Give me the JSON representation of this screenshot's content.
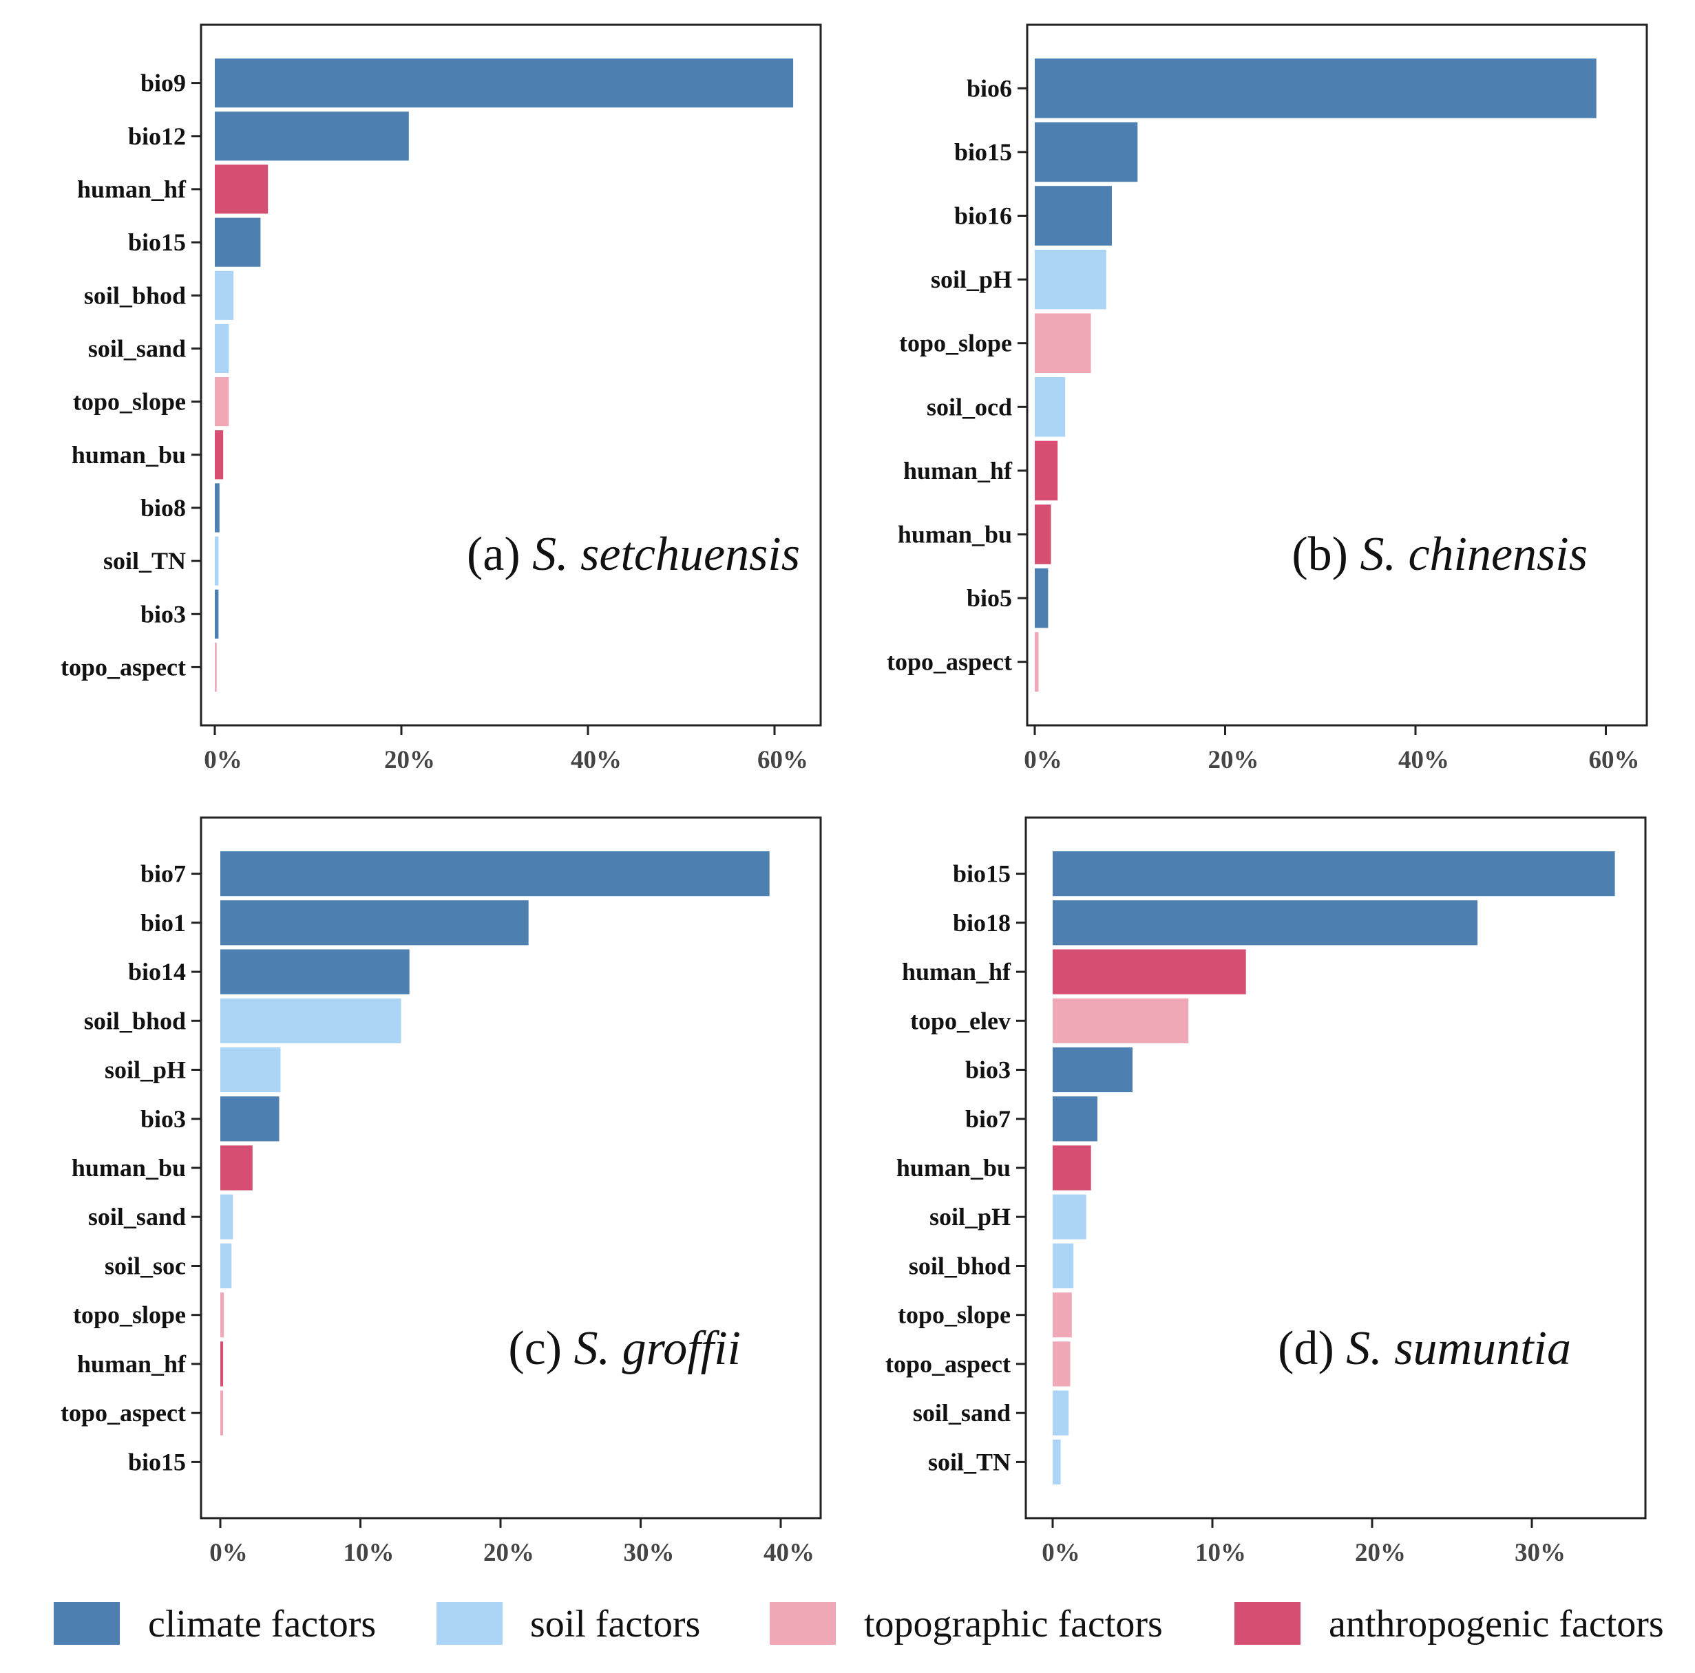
{
  "colors": {
    "climate": "#4d7fb0",
    "soil": "#abd4f7",
    "topographic": "#f0a8b6",
    "anthropogenic": "#d64f72"
  },
  "legend": [
    {
      "category": "climate",
      "label": "climate factors"
    },
    {
      "category": "soil",
      "label": "soil factors"
    },
    {
      "category": "topographic",
      "label": "topographic factors"
    },
    {
      "category": "anthropogenic",
      "label": "anthropogenic factors"
    }
  ],
  "chart_data": [
    {
      "type": "bar",
      "orientation": "horizontal",
      "panel": "(a)",
      "species": "S. setchuensis",
      "xlim": [
        0,
        64
      ],
      "xticks": [
        0,
        20,
        40,
        60
      ],
      "xtick_labels": [
        "0%",
        "20%",
        "40%",
        "60%"
      ],
      "bars": [
        {
          "name": "bio9",
          "value": 62.0,
          "category": "climate"
        },
        {
          "name": "bio12",
          "value": 20.8,
          "category": "climate"
        },
        {
          "name": "human_hf",
          "value": 5.7,
          "category": "anthropogenic"
        },
        {
          "name": "bio15",
          "value": 4.9,
          "category": "climate"
        },
        {
          "name": "soil_bhod",
          "value": 2.0,
          "category": "soil"
        },
        {
          "name": "soil_sand",
          "value": 1.5,
          "category": "soil"
        },
        {
          "name": "topo_slope",
          "value": 1.5,
          "category": "topographic"
        },
        {
          "name": "human_bu",
          "value": 0.9,
          "category": "anthropogenic"
        },
        {
          "name": "bio8",
          "value": 0.5,
          "category": "climate"
        },
        {
          "name": "soil_TN",
          "value": 0.4,
          "category": "soil"
        },
        {
          "name": "bio3",
          "value": 0.4,
          "category": "climate"
        },
        {
          "name": "topo_aspect",
          "value": 0.2,
          "category": "topographic"
        }
      ]
    },
    {
      "type": "bar",
      "orientation": "horizontal",
      "panel": "(b)",
      "species": "S. chinensis",
      "xlim": [
        0,
        62
      ],
      "xticks": [
        0,
        20,
        40,
        60
      ],
      "xtick_labels": [
        "0%",
        "20%",
        "40%",
        "60%"
      ],
      "bars": [
        {
          "name": "bio6",
          "value": 59.0,
          "category": "climate"
        },
        {
          "name": "bio15",
          "value": 10.8,
          "category": "climate"
        },
        {
          "name": "bio16",
          "value": 8.1,
          "category": "climate"
        },
        {
          "name": "soil_pH",
          "value": 7.5,
          "category": "soil"
        },
        {
          "name": "topo_slope",
          "value": 5.9,
          "category": "topographic"
        },
        {
          "name": "soil_ocd",
          "value": 3.2,
          "category": "soil"
        },
        {
          "name": "human_hf",
          "value": 2.4,
          "category": "anthropogenic"
        },
        {
          "name": "human_bu",
          "value": 1.7,
          "category": "anthropogenic"
        },
        {
          "name": "bio5",
          "value": 1.4,
          "category": "climate"
        },
        {
          "name": "topo_aspect",
          "value": 0.4,
          "category": "topographic"
        }
      ]
    },
    {
      "type": "bar",
      "orientation": "horizontal",
      "panel": "(c)",
      "species": "S. groffii",
      "xlim": [
        0,
        42
      ],
      "xticks": [
        0,
        10,
        20,
        30,
        40
      ],
      "xtick_labels": [
        "0%",
        "10%",
        "20%",
        "30%",
        "40%"
      ],
      "bars": [
        {
          "name": "bio7",
          "value": 39.2,
          "category": "climate"
        },
        {
          "name": "bio1",
          "value": 22.0,
          "category": "climate"
        },
        {
          "name": "bio14",
          "value": 13.5,
          "category": "climate"
        },
        {
          "name": "soil_bhod",
          "value": 12.9,
          "category": "soil"
        },
        {
          "name": "soil_pH",
          "value": 4.3,
          "category": "soil"
        },
        {
          "name": "bio3",
          "value": 4.2,
          "category": "climate"
        },
        {
          "name": "human_bu",
          "value": 2.3,
          "category": "anthropogenic"
        },
        {
          "name": "soil_sand",
          "value": 0.9,
          "category": "soil"
        },
        {
          "name": "soil_soc",
          "value": 0.8,
          "category": "soil"
        },
        {
          "name": "topo_slope",
          "value": 0.25,
          "category": "topographic"
        },
        {
          "name": "human_hf",
          "value": 0.2,
          "category": "anthropogenic"
        },
        {
          "name": "topo_aspect",
          "value": 0.2,
          "category": "topographic"
        },
        {
          "name": "bio15",
          "value": 0.0,
          "category": "climate"
        }
      ]
    },
    {
      "type": "bar",
      "orientation": "horizontal",
      "panel": "(d)",
      "species": "S. sumuntia",
      "xlim": [
        0,
        37
      ],
      "xticks": [
        0,
        10,
        20,
        30
      ],
      "xtick_labels": [
        "0%",
        "10%",
        "20%",
        "30%"
      ],
      "bars": [
        {
          "name": "bio15",
          "value": 35.2,
          "category": "climate"
        },
        {
          "name": "bio18",
          "value": 26.6,
          "category": "climate"
        },
        {
          "name": "human_hf",
          "value": 12.1,
          "category": "anthropogenic"
        },
        {
          "name": "topo_elev",
          "value": 8.5,
          "category": "topographic"
        },
        {
          "name": "bio3",
          "value": 5.0,
          "category": "climate"
        },
        {
          "name": "bio7",
          "value": 2.8,
          "category": "climate"
        },
        {
          "name": "human_bu",
          "value": 2.4,
          "category": "anthropogenic"
        },
        {
          "name": "soil_pH",
          "value": 2.1,
          "category": "soil"
        },
        {
          "name": "soil_bhod",
          "value": 1.3,
          "category": "soil"
        },
        {
          "name": "topo_slope",
          "value": 1.2,
          "category": "topographic"
        },
        {
          "name": "topo_aspect",
          "value": 1.1,
          "category": "topographic"
        },
        {
          "name": "soil_sand",
          "value": 1.0,
          "category": "soil"
        },
        {
          "name": "soil_TN",
          "value": 0.5,
          "category": "soil"
        }
      ]
    }
  ]
}
